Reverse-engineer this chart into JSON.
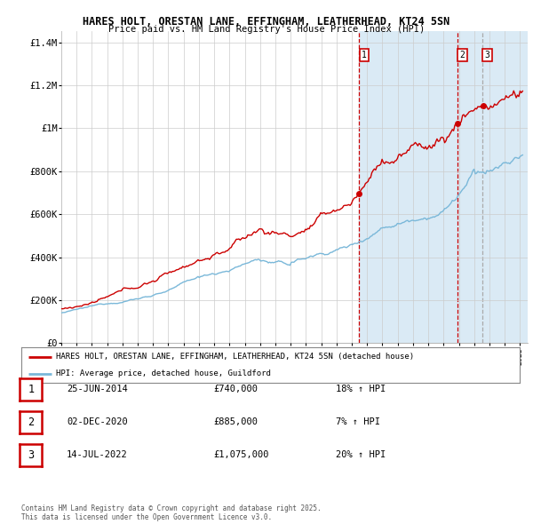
{
  "title1": "HARES HOLT, ORESTAN LANE, EFFINGHAM, LEATHERHEAD, KT24 5SN",
  "title2": "Price paid vs. HM Land Registry's House Price Index (HPI)",
  "legend_line1": "HARES HOLT, ORESTAN LANE, EFFINGHAM, LEATHERHEAD, KT24 5SN (detached house)",
  "legend_line2": "HPI: Average price, detached house, Guildford",
  "sale_labels": [
    "1",
    "2",
    "3"
  ],
  "sale_dates": [
    2014.49,
    2020.92,
    2022.54
  ],
  "sale_prices": [
    740000,
    885000,
    1075000
  ],
  "sale_hpi_pct": [
    "18% ↑ HPI",
    "7% ↑ HPI",
    "20% ↑ HPI"
  ],
  "sale_dates_str": [
    "25-JUN-2014",
    "02-DEC-2020",
    "14-JUL-2022"
  ],
  "sale_prices_str": [
    "£740,000",
    "£885,000",
    "£1,075,000"
  ],
  "ylim": [
    0,
    1450000
  ],
  "xlim_start": 1995.0,
  "xlim_end": 2025.5,
  "red_color": "#cc0000",
  "blue_color": "#7ab8d9",
  "shade_color": "#daeaf5",
  "footer": "Contains HM Land Registry data © Crown copyright and database right 2025.\nThis data is licensed under the Open Government Licence v3.0.",
  "background_color": "#ffffff",
  "grid_color": "#cccccc"
}
